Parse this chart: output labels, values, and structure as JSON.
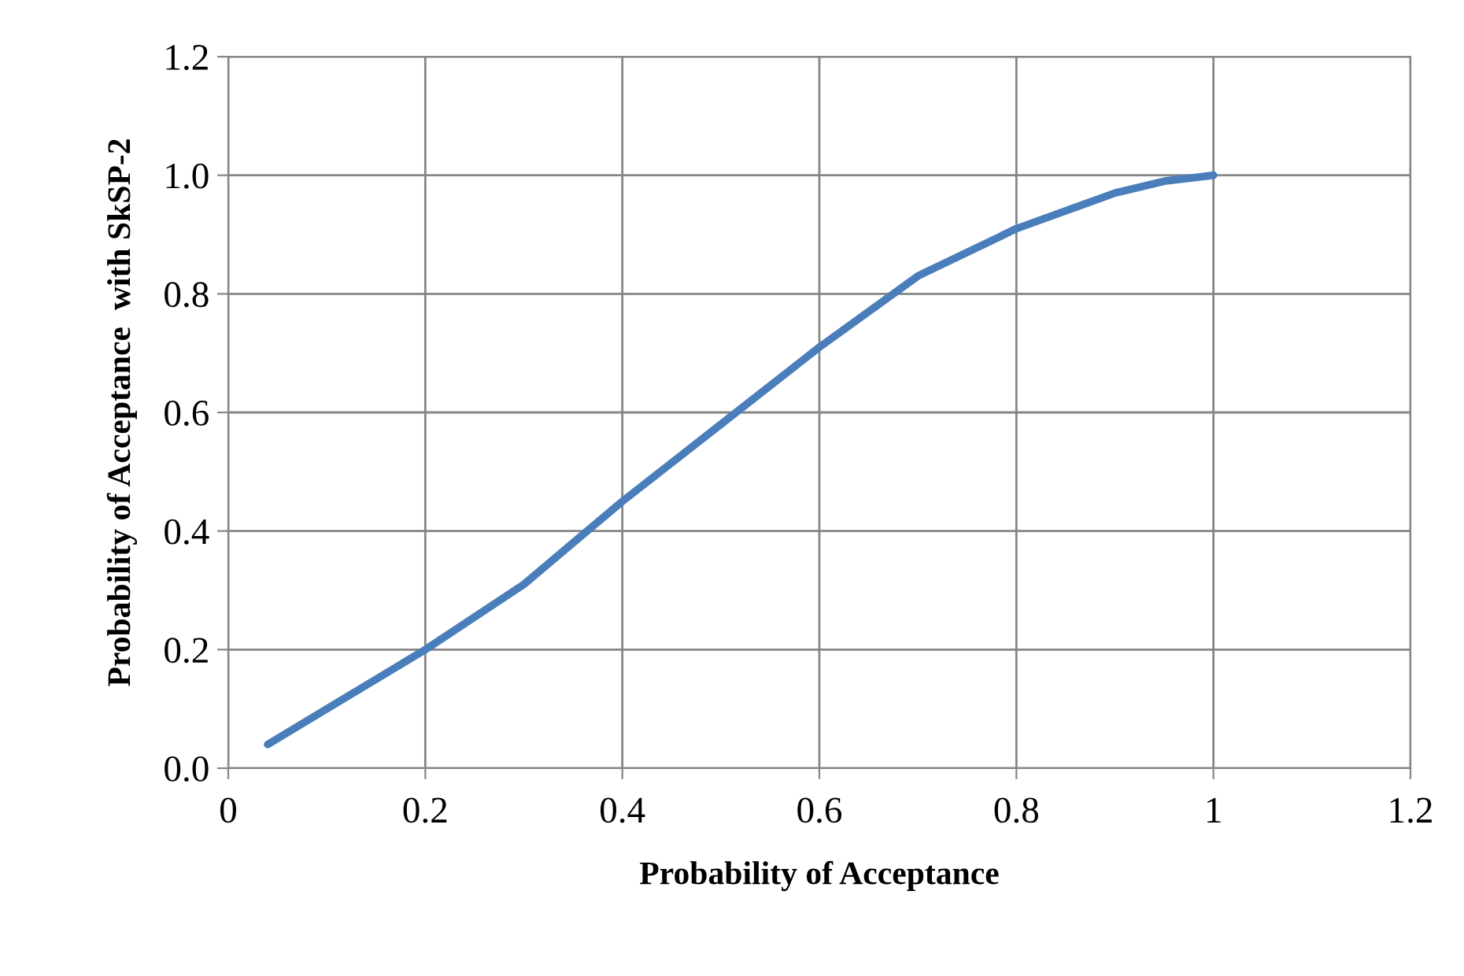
{
  "chart_data": {
    "type": "line",
    "xlabel": "Probability of Acceptance",
    "ylabel": "Probability of Acceptance  with SkSP-2",
    "x": [
      0.04,
      0.1,
      0.2,
      0.3,
      0.4,
      0.5,
      0.6,
      0.7,
      0.8,
      0.9,
      0.95,
      1.0
    ],
    "series": [
      {
        "color": "#4a7ebb",
        "values": [
          0.04,
          0.1,
          0.2,
          0.31,
          0.45,
          0.58,
          0.71,
          0.83,
          0.91,
          0.97,
          0.99,
          1.0
        ]
      }
    ],
    "xlim": [
      0,
      1.2
    ],
    "xticks": [
      0,
      0.2,
      0.4,
      0.6,
      0.8,
      1,
      1.2
    ],
    "ylim": [
      0,
      1.2
    ],
    "yticks": [
      {
        "value": 0,
        "label": "0.0"
      },
      {
        "value": 0.2,
        "label": "0.2"
      },
      {
        "value": 0.4,
        "label": "0.4"
      },
      {
        "value": 0.6,
        "label": "0.6"
      },
      {
        "value": 0.8,
        "label": "0.8"
      },
      {
        "value": 1,
        "label": "1.0"
      },
      {
        "value": 1.2,
        "label": "1.2"
      }
    ],
    "grid": true,
    "marker": "none",
    "line_style": "solid",
    "legend": false
  }
}
